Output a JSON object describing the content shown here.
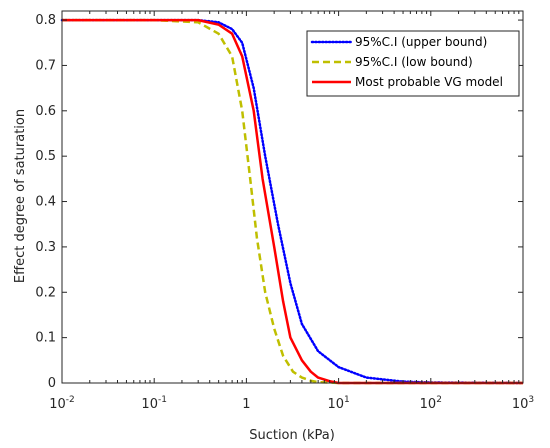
{
  "chart_data": {
    "type": "line",
    "xlabel": "Suction (kPa)",
    "ylabel": "Effect degree of saturation",
    "xscale": "log",
    "xlim": [
      0.01,
      1000
    ],
    "ylim": [
      0,
      0.82
    ],
    "grid": false,
    "legend_position": "top-right",
    "x_ticks": [
      {
        "base": "10",
        "exp": "-2",
        "value": 0.01
      },
      {
        "base": "10",
        "exp": "-1",
        "value": 0.1
      },
      {
        "base": "1",
        "exp": "",
        "value": 1
      },
      {
        "base": "10",
        "exp": "1",
        "value": 10
      },
      {
        "base": "10",
        "exp": "2",
        "value": 100
      },
      {
        "base": "10",
        "exp": "3",
        "value": 1000
      }
    ],
    "y_ticks": [
      "0",
      "0.1",
      "0.2",
      "0.3",
      "0.4",
      "0.5",
      "0.6",
      "0.7",
      "0.8"
    ],
    "series": [
      {
        "name": "95%C.I (upper bound)",
        "color": "#0000ff",
        "style": "dotted",
        "x": [
          0.01,
          0.1,
          0.3,
          0.5,
          0.7,
          0.9,
          1.2,
          1.6,
          2.2,
          3,
          4,
          6,
          10,
          20,
          50,
          100,
          1000
        ],
        "y": [
          0.8,
          0.8,
          0.8,
          0.795,
          0.78,
          0.75,
          0.65,
          0.5,
          0.35,
          0.22,
          0.13,
          0.07,
          0.035,
          0.012,
          0.003,
          0.001,
          0.0
        ]
      },
      {
        "name": "95%C.I (low bound)",
        "color": "#bfbf00",
        "style": "dashed",
        "x": [
          0.01,
          0.1,
          0.3,
          0.5,
          0.7,
          0.9,
          1.1,
          1.3,
          1.6,
          2,
          2.5,
          3.2,
          4,
          5,
          6,
          10,
          100,
          1000
        ],
        "y": [
          0.8,
          0.8,
          0.795,
          0.77,
          0.72,
          0.6,
          0.45,
          0.32,
          0.2,
          0.12,
          0.06,
          0.025,
          0.012,
          0.005,
          0.002,
          0.0,
          0.0,
          0.0
        ]
      },
      {
        "name": "Most probable VG model",
        "color": "#ff0000",
        "style": "solid",
        "x": [
          0.01,
          0.1,
          0.3,
          0.5,
          0.7,
          0.9,
          1.2,
          1.5,
          2,
          2.5,
          3,
          4,
          5,
          6,
          8,
          10,
          100,
          1000
        ],
        "y": [
          0.8,
          0.8,
          0.8,
          0.79,
          0.77,
          0.72,
          0.6,
          0.45,
          0.3,
          0.18,
          0.1,
          0.05,
          0.025,
          0.012,
          0.004,
          0.0,
          0.0,
          0.0
        ]
      }
    ]
  }
}
